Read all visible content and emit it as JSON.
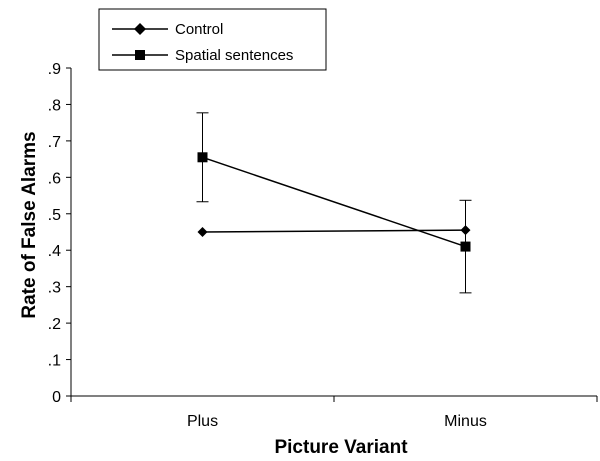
{
  "chart_data": {
    "type": "line",
    "categories": [
      "Plus",
      "Minus"
    ],
    "xlabel": "Picture Variant",
    "ylabel": "Rate of False Alarms",
    "ylim": [
      0,
      0.9
    ],
    "yticks": [
      0,
      0.1,
      0.2,
      0.3,
      0.4,
      0.5,
      0.6,
      0.7,
      0.8,
      0.9
    ],
    "ytick_labels": [
      "0",
      ".1",
      ".2",
      ".3",
      ".4",
      ".5",
      ".6",
      ".7",
      ".8",
      ".9"
    ],
    "grid": false,
    "legend_position": "top-left",
    "series": [
      {
        "name": "Control",
        "marker": "diamond",
        "values": [
          0.45,
          0.455
        ],
        "error": null
      },
      {
        "name": "Spatial sentences",
        "marker": "square",
        "values": [
          0.655,
          0.41
        ],
        "error": [
          0.122,
          0.127
        ]
      }
    ]
  }
}
